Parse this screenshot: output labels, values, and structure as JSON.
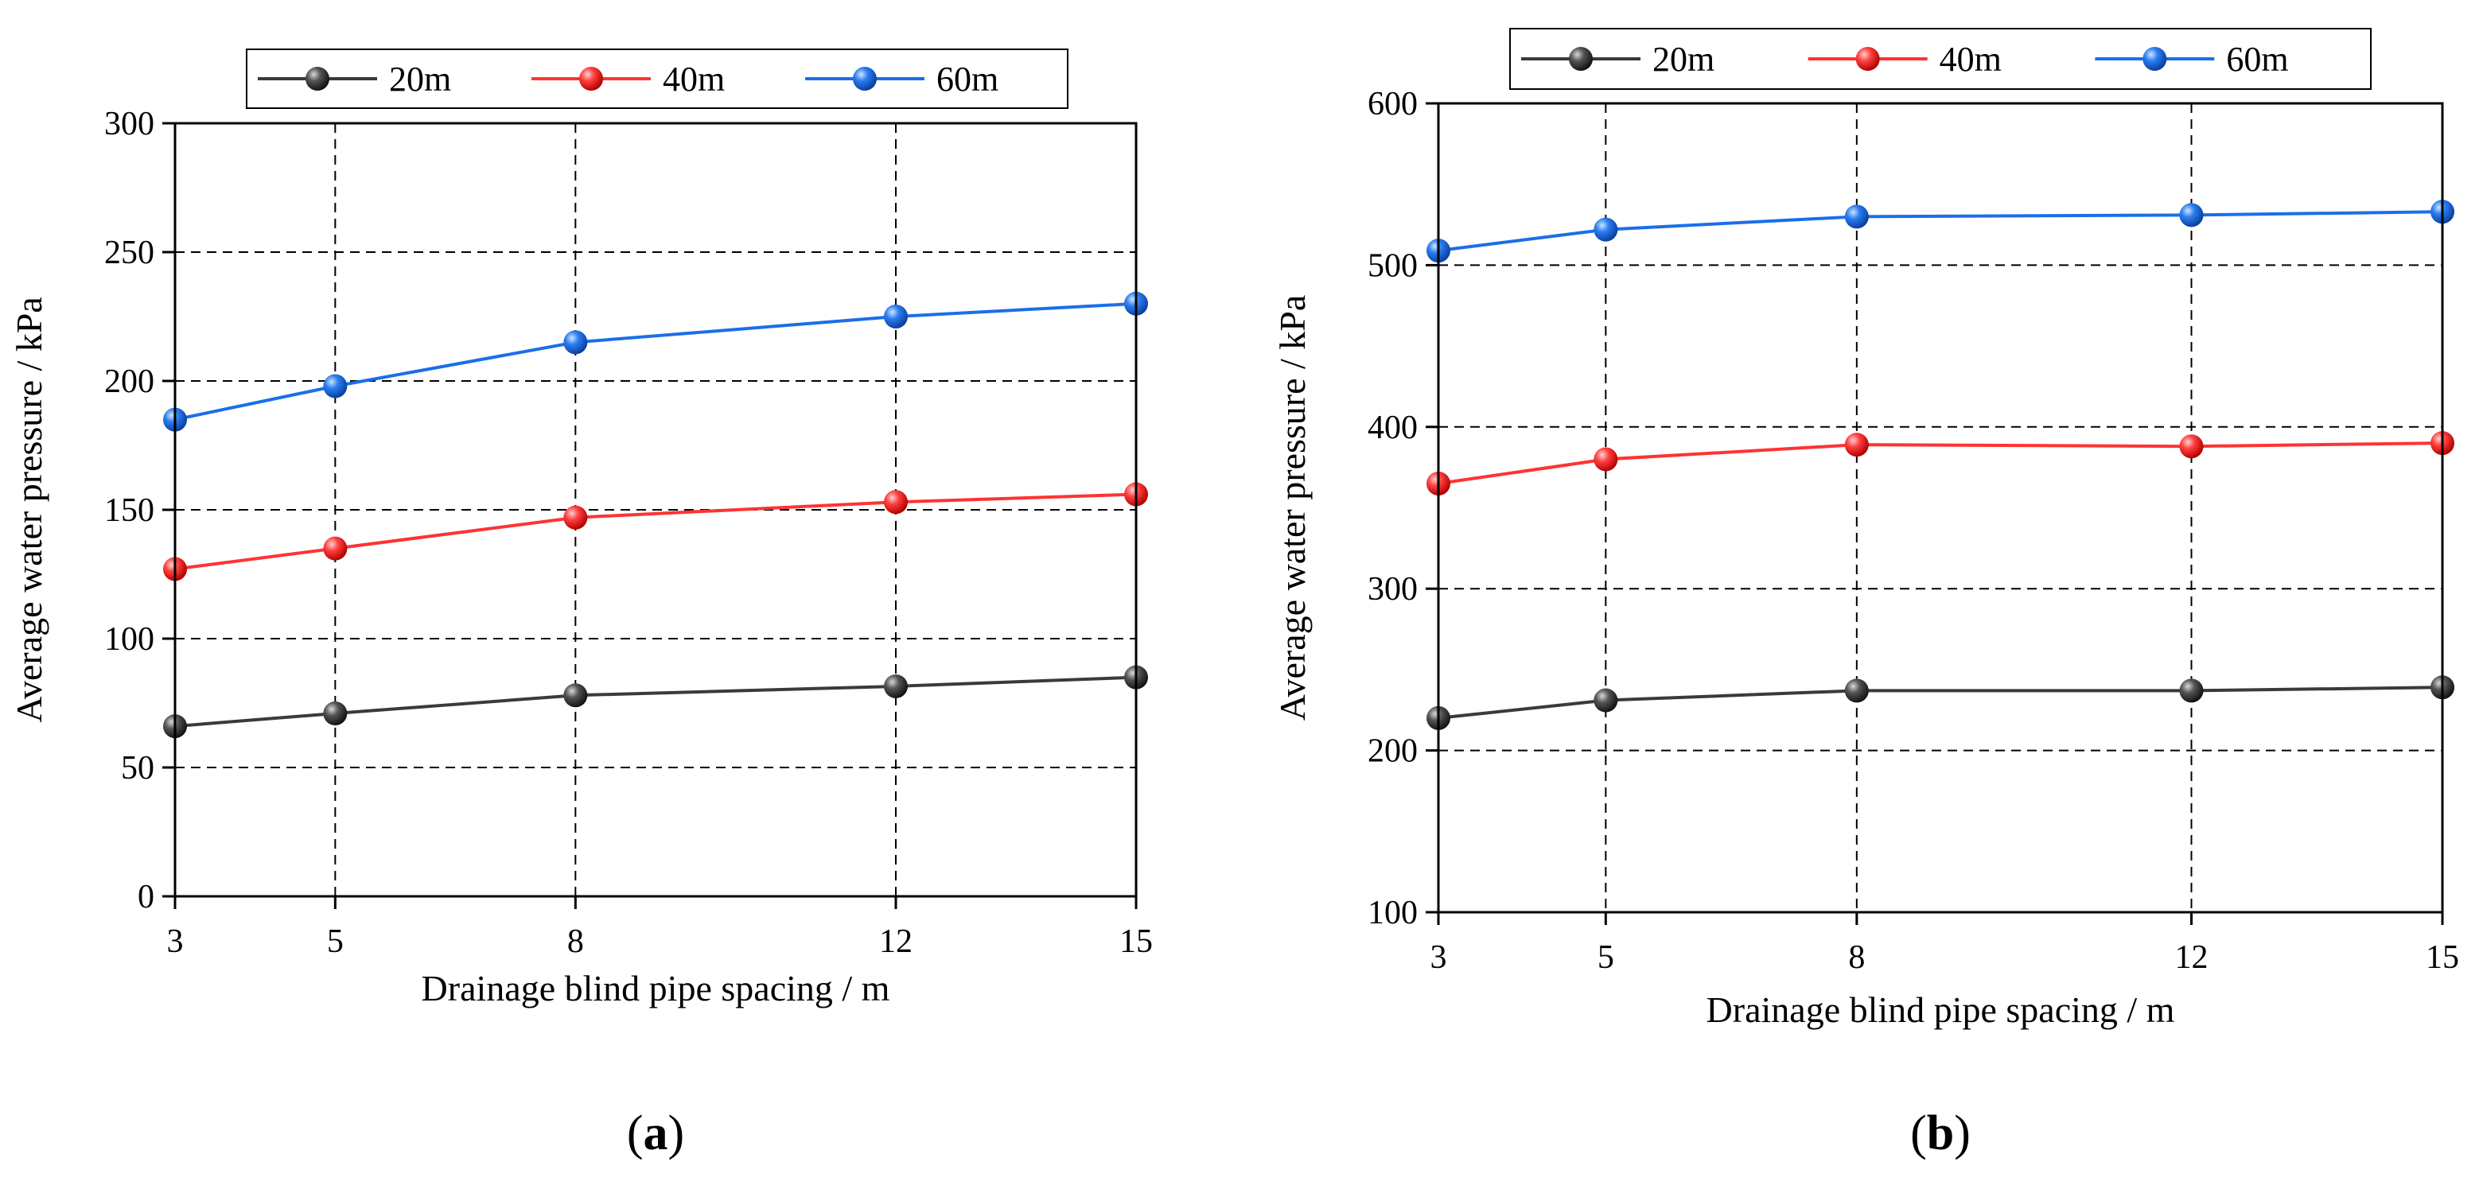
{
  "chart_data": [
    {
      "type": "line",
      "panel_label": "a",
      "x": [
        3,
        5,
        8,
        12,
        15
      ],
      "xlabel": "Drainage blind pipe spacing / m",
      "ylabel": "Average water pressure / kPa",
      "xlim": [
        3,
        15
      ],
      "ylim": [
        0,
        300
      ],
      "x_ticks": [
        3,
        5,
        8,
        12,
        15
      ],
      "y_ticks": [
        0,
        50,
        100,
        150,
        200,
        250,
        300
      ],
      "grid": true,
      "legend_position": "top-outside",
      "series": [
        {
          "name": "20m",
          "color": "#3a3a3a",
          "values": [
            66,
            71,
            78,
            81.5,
            85
          ]
        },
        {
          "name": "40m",
          "color": "#ff3333",
          "values": [
            127,
            135,
            147,
            153,
            156
          ]
        },
        {
          "name": "60m",
          "color": "#1a6fe8",
          "values": [
            185,
            198,
            215,
            225,
            230
          ]
        }
      ]
    },
    {
      "type": "line",
      "panel_label": "b",
      "x": [
        3,
        5,
        8,
        12,
        15
      ],
      "xlabel": "Drainage blind pipe spacing / m",
      "ylabel": "Average water pressure / kPa",
      "xlim": [
        3,
        15
      ],
      "ylim": [
        100,
        600
      ],
      "x_ticks": [
        3,
        5,
        8,
        12,
        15
      ],
      "y_ticks": [
        100,
        200,
        300,
        400,
        500,
        600
      ],
      "grid": true,
      "legend_position": "top-outside",
      "series": [
        {
          "name": "20m",
          "color": "#3a3a3a",
          "values": [
            220,
            231,
            237,
            237,
            239
          ]
        },
        {
          "name": "40m",
          "color": "#ff3333",
          "values": [
            365,
            380,
            389,
            388,
            390
          ]
        },
        {
          "name": "60m",
          "color": "#1a6fe8",
          "values": [
            509,
            522,
            530,
            531,
            533
          ]
        }
      ]
    }
  ]
}
